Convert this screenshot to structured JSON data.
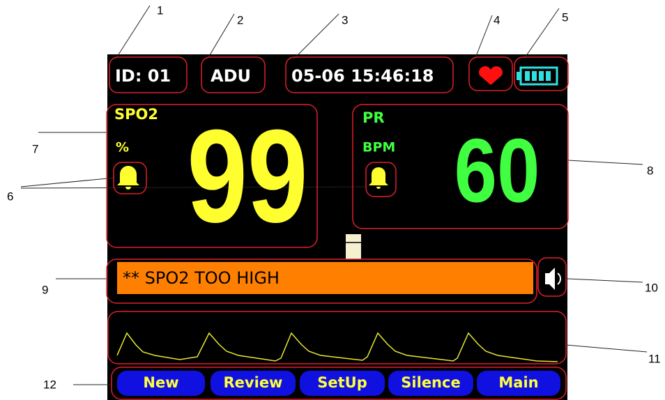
{
  "callouts": [
    "1",
    "2",
    "3",
    "4",
    "5",
    "6",
    "7",
    "8",
    "9",
    "10",
    "11",
    "12"
  ],
  "header": {
    "id": "ID: 01",
    "mode": "ADU",
    "datetime": "05-06 15:46:18"
  },
  "spo2": {
    "label": "SPO2",
    "unit": "%",
    "value": "99"
  },
  "pr": {
    "label": "PR",
    "unit": "BPM",
    "value": "60"
  },
  "alarm": {
    "message": "** SPO2 TOO HIGH"
  },
  "buttons": [
    "New",
    "Review",
    "SetUp",
    "Silence",
    "Main"
  ]
}
